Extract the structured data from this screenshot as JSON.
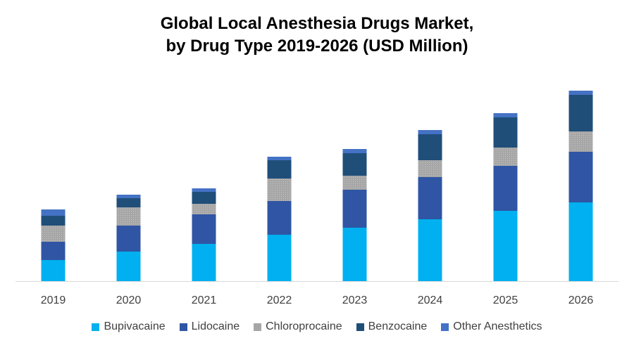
{
  "chart_data": {
    "type": "bar",
    "stacked": true,
    "title_line1": "Global Local Anesthesia Drugs Market,",
    "title_line2": "by Drug Type 2019-2026 (USD Million)",
    "categories": [
      "2019",
      "2020",
      "2021",
      "2022",
      "2023",
      "2024",
      "2025",
      "2026"
    ],
    "series": [
      {
        "name": "Bupivacaine",
        "color": "#00b0f0",
        "values": [
          30,
          42,
          53,
          66,
          76,
          88,
          100,
          112
        ]
      },
      {
        "name": "Lidocaine",
        "color": "#2f55a4",
        "values": [
          26,
          37,
          42,
          48,
          54,
          60,
          64,
          72
        ]
      },
      {
        "name": "Chloroprocaine",
        "color": "#a6a6a6",
        "values": [
          23,
          26,
          15,
          32,
          20,
          24,
          26,
          29
        ]
      },
      {
        "name": "Benzocaine",
        "color": "#1f4e79",
        "values": [
          14,
          13,
          17,
          26,
          32,
          37,
          43,
          52
        ]
      },
      {
        "name": "Other Anesthetics",
        "color": "#4472c4",
        "values": [
          9,
          5,
          5,
          5,
          6,
          6,
          6,
          6
        ]
      }
    ],
    "ylim": [
      0,
      272
    ],
    "grid": false,
    "legend_position": "bottom"
  }
}
